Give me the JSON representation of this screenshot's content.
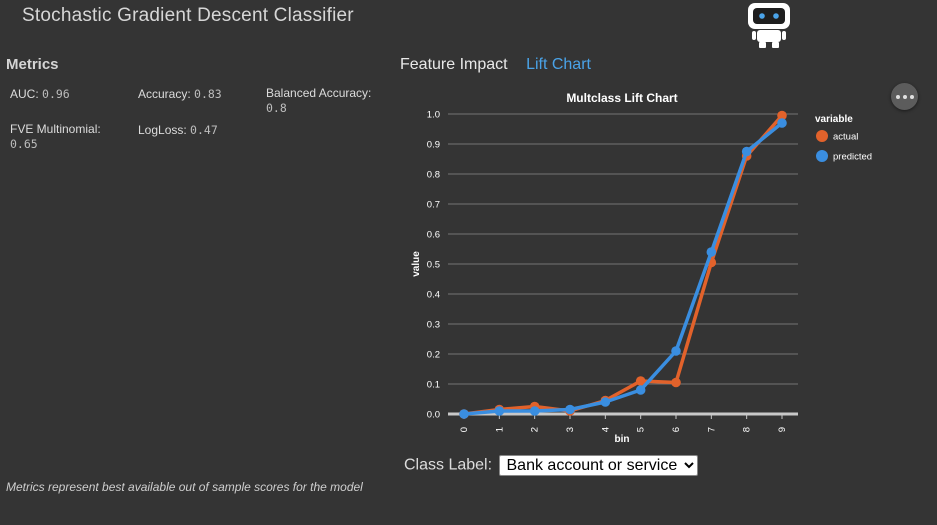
{
  "app": {
    "title": "Stochastic Gradient Descent Classifier"
  },
  "metrics": {
    "title": "Metrics",
    "items": [
      {
        "label": "AUC:",
        "value": "0.96"
      },
      {
        "label": "Accuracy:",
        "value": "0.83"
      },
      {
        "label": "Balanced Accuracy:",
        "value": "0.8"
      },
      {
        "label": "FVE Multinomial:",
        "value": "0.65"
      },
      {
        "label": "LogLoss:",
        "value": "0.47"
      }
    ],
    "footnote": "Metrics represent best available out of sample scores for the model"
  },
  "tabs": [
    {
      "label": "Feature Impact",
      "active": false
    },
    {
      "label": "Lift Chart",
      "active": true
    }
  ],
  "class_label": {
    "label": "Class Label:",
    "selected": "Bank account or service"
  },
  "icons": {
    "robot": "robot-icon",
    "more": "more-options-icon"
  },
  "colors": {
    "actual": "#e2622b",
    "predicted": "#3a8ee0",
    "link": "#4aa3e8",
    "background": "#343434"
  },
  "chart_data": {
    "type": "line",
    "title": "Multclass Lift Chart",
    "xlabel": "bin",
    "ylabel": "value",
    "x": [
      0,
      1,
      2,
      3,
      4,
      5,
      6,
      7,
      8,
      9
    ],
    "xlim": [
      0,
      9
    ],
    "ylim": [
      0.0,
      1.0
    ],
    "yticks": [
      "0.0",
      "0.1",
      "0.2",
      "0.3",
      "0.4",
      "0.5",
      "0.6",
      "0.7",
      "0.8",
      "0.9",
      "1.0"
    ],
    "grid": true,
    "legend": {
      "title": "variable",
      "placement": "right"
    },
    "series": [
      {
        "name": "actual",
        "color": "#e2622b",
        "values": [
          0.0,
          0.015,
          0.025,
          0.01,
          0.045,
          0.11,
          0.105,
          0.505,
          0.86,
          0.995
        ]
      },
      {
        "name": "predicted",
        "color": "#3a8ee0",
        "values": [
          0.0,
          0.01,
          0.01,
          0.015,
          0.04,
          0.08,
          0.21,
          0.54,
          0.875,
          0.97
        ]
      }
    ]
  }
}
